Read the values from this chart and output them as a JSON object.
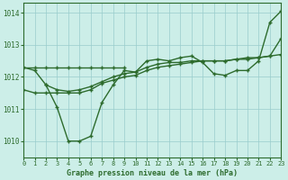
{
  "title": "Graphe pression niveau de la mer (hPa)",
  "background_color": "#cceee8",
  "grid_color": "#99cccc",
  "line_color": "#2d6b2d",
  "xlim": [
    0,
    23
  ],
  "ylim": [
    1009.5,
    1014.3
  ],
  "yticks": [
    1010,
    1011,
    1012,
    1013,
    1014
  ],
  "xticks": [
    0,
    1,
    2,
    3,
    4,
    5,
    6,
    7,
    8,
    9,
    10,
    11,
    12,
    13,
    14,
    15,
    16,
    17,
    18,
    19,
    20,
    21,
    22,
    23
  ],
  "line_flat": {
    "x": [
      0,
      1,
      2,
      3,
      4,
      5,
      6,
      7,
      8,
      9
    ],
    "y": [
      1012.3,
      1012.3,
      1012.3,
      1012.3,
      1012.3,
      1012.3,
      1012.3,
      1012.3,
      1012.3,
      1012.3
    ]
  },
  "line_dip": {
    "x": [
      0,
      1,
      2,
      3,
      4,
      5,
      6,
      7,
      8,
      9,
      10,
      11,
      12,
      13,
      14,
      15,
      16,
      17,
      18,
      19,
      20,
      21,
      22,
      23
    ],
    "y": [
      1012.3,
      1012.2,
      1011.75,
      1011.05,
      1010.0,
      1010.0,
      1010.15,
      1011.2,
      1011.75,
      1012.2,
      1012.15,
      1012.5,
      1012.55,
      1012.5,
      1012.6,
      1012.65,
      1012.45,
      1012.1,
      1012.05,
      1012.2,
      1012.2,
      1012.5,
      1013.7,
      1014.05
    ]
  },
  "line_low": {
    "x": [
      0,
      1,
      2,
      3,
      4,
      5,
      6,
      7,
      8,
      9,
      10,
      11,
      12,
      13,
      14,
      15,
      16,
      17,
      18,
      19,
      20,
      21,
      22,
      23
    ],
    "y": [
      1011.6,
      1011.5,
      1011.5,
      1011.5,
      1011.5,
      1011.5,
      1011.6,
      1011.8,
      1011.9,
      1012.0,
      1012.05,
      1012.2,
      1012.3,
      1012.35,
      1012.4,
      1012.45,
      1012.5,
      1012.5,
      1012.5,
      1012.55,
      1012.55,
      1012.6,
      1012.65,
      1012.7
    ]
  },
  "line_mid": {
    "x": [
      2,
      3,
      4,
      5,
      6,
      7,
      8,
      9,
      10,
      11,
      12,
      13,
      14,
      15,
      16,
      17,
      18,
      19,
      20,
      21,
      22,
      23
    ],
    "y": [
      1011.75,
      1011.6,
      1011.55,
      1011.6,
      1011.7,
      1011.85,
      1012.0,
      1012.1,
      1012.15,
      1012.3,
      1012.4,
      1012.45,
      1012.45,
      1012.5,
      1012.5,
      1012.5,
      1012.5,
      1012.55,
      1012.6,
      1012.6,
      1012.65,
      1013.2
    ]
  },
  "line_high": {
    "x": [
      9,
      10,
      11,
      12,
      13,
      14,
      15,
      16,
      17,
      18,
      19,
      20,
      21,
      22,
      23
    ],
    "y": [
      1012.2,
      1012.5,
      1012.6,
      1012.55,
      1012.5,
      1012.65,
      1012.7,
      1012.5,
      1012.1,
      1012.1,
      1012.25,
      1012.55,
      1012.5,
      1013.7,
      1014.05
    ]
  }
}
